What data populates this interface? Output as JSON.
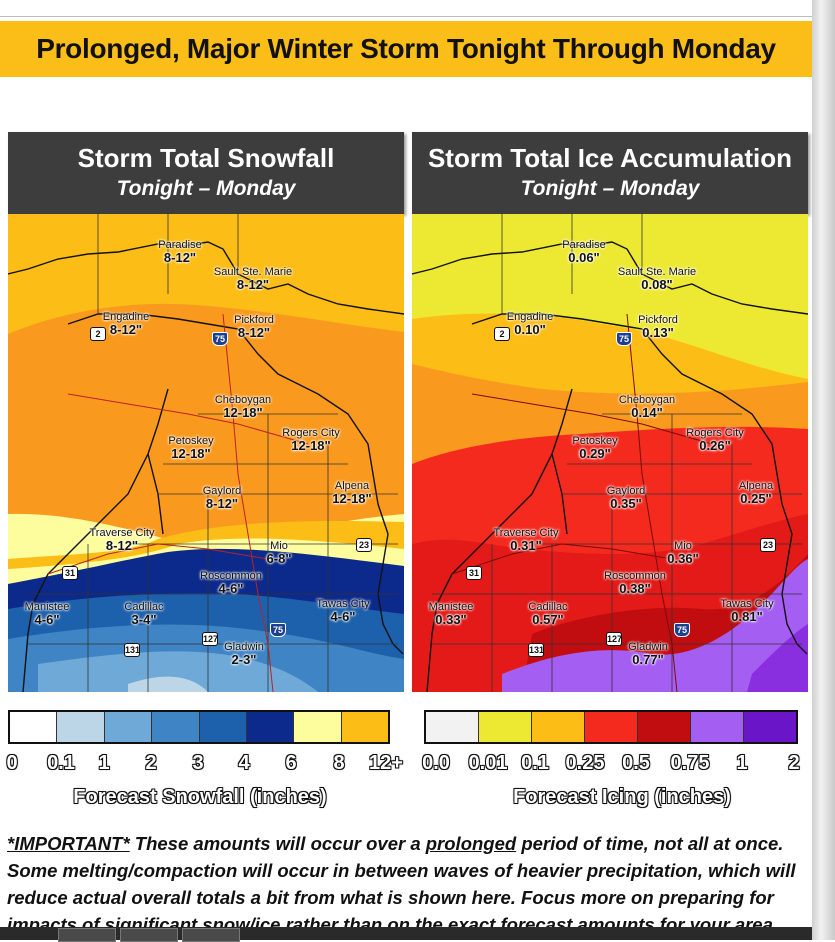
{
  "title": "Prolonged, Major Winter Storm Tonight Through Monday",
  "snow_panel": {
    "title": "Storm Total Snowfall",
    "subtitle": "Tonight – Monday",
    "labels": [
      {
        "name": "Paradise",
        "value": "8-12\""
      },
      {
        "name": "Sault Ste. Marie",
        "value": "8-12\""
      },
      {
        "name": "Engadine",
        "value": "8-12\""
      },
      {
        "name": "Pickford",
        "value": "8-12\""
      },
      {
        "name": "Cheboygan",
        "value": "12-18\""
      },
      {
        "name": "Petoskey",
        "value": "12-18\""
      },
      {
        "name": "Rogers City",
        "value": "12-18\""
      },
      {
        "name": "Gaylord",
        "value": "8-12\""
      },
      {
        "name": "Alpena",
        "value": "12-18\""
      },
      {
        "name": "Traverse City",
        "value": "8-12\""
      },
      {
        "name": "Mio",
        "value": "6-8\""
      },
      {
        "name": "Roscommon",
        "value": "4-6\""
      },
      {
        "name": "Manistee",
        "value": "4-6\""
      },
      {
        "name": "Cadillac",
        "value": "3-4\""
      },
      {
        "name": "Tawas City",
        "value": "4-6\""
      },
      {
        "name": "Gladwin",
        "value": "2-3\""
      }
    ],
    "legend": {
      "title": "Forecast Snowfall (inches)",
      "ticks": [
        "0",
        "0.1",
        "1",
        "2",
        "3",
        "4",
        "6",
        "8",
        "12+"
      ],
      "colors": [
        "#ffffff",
        "#bcd6e8",
        "#6fa9d8",
        "#3f84c5",
        "#1d61ad",
        "#0b2a8c",
        "#fdfd9e",
        "#fcbd16"
      ]
    }
  },
  "ice_panel": {
    "title": "Storm Total Ice Accumulation",
    "subtitle": "Tonight – Monday",
    "labels": [
      {
        "name": "Paradise",
        "value": "0.06\""
      },
      {
        "name": "Sault Ste. Marie",
        "value": "0.08\""
      },
      {
        "name": "Engadine",
        "value": "0.10\""
      },
      {
        "name": "Pickford",
        "value": "0.13\""
      },
      {
        "name": "Cheboygan",
        "value": "0.14\""
      },
      {
        "name": "Petoskey",
        "value": "0.29\""
      },
      {
        "name": "Rogers City",
        "value": "0.26\""
      },
      {
        "name": "Gaylord",
        "value": "0.35\""
      },
      {
        "name": "Alpena",
        "value": "0.25\""
      },
      {
        "name": "Traverse City",
        "value": "0.31\""
      },
      {
        "name": "Mio",
        "value": "0.36\""
      },
      {
        "name": "Roscommon",
        "value": "0.38\""
      },
      {
        "name": "Manistee",
        "value": "0.33\""
      },
      {
        "name": "Cadillac",
        "value": "0.57\""
      },
      {
        "name": "Tawas City",
        "value": "0.81\""
      },
      {
        "name": "Gladwin",
        "value": "0.77\""
      }
    ],
    "legend": {
      "title": "Forecast Icing (inches)",
      "ticks": [
        "0.0",
        "0.01",
        "0.1",
        "0.25",
        "0.5",
        "0.75",
        "1",
        "2"
      ],
      "colors": [
        "#f2f2f2",
        "#ede932",
        "#fbbd16",
        "#f42a1f",
        "#c20d10",
        "#a45ef2",
        "#6a15c8"
      ]
    }
  },
  "highway_shields": [
    "2",
    "75",
    "31",
    "23",
    "127",
    "131"
  ],
  "note": {
    "important": "*IMPORTANT*",
    "part1": " These amounts will occur over a ",
    "prolonged": "prolonged",
    "part2": " period of time, not all at once. Some melting/compaction will occur in between waves of heavier precipitation, which will reduce actual overall totals a bit from what is shown here. Focus more on preparing for impacts of significant snow/ice rather than on the exact forecast amounts for your area."
  }
}
